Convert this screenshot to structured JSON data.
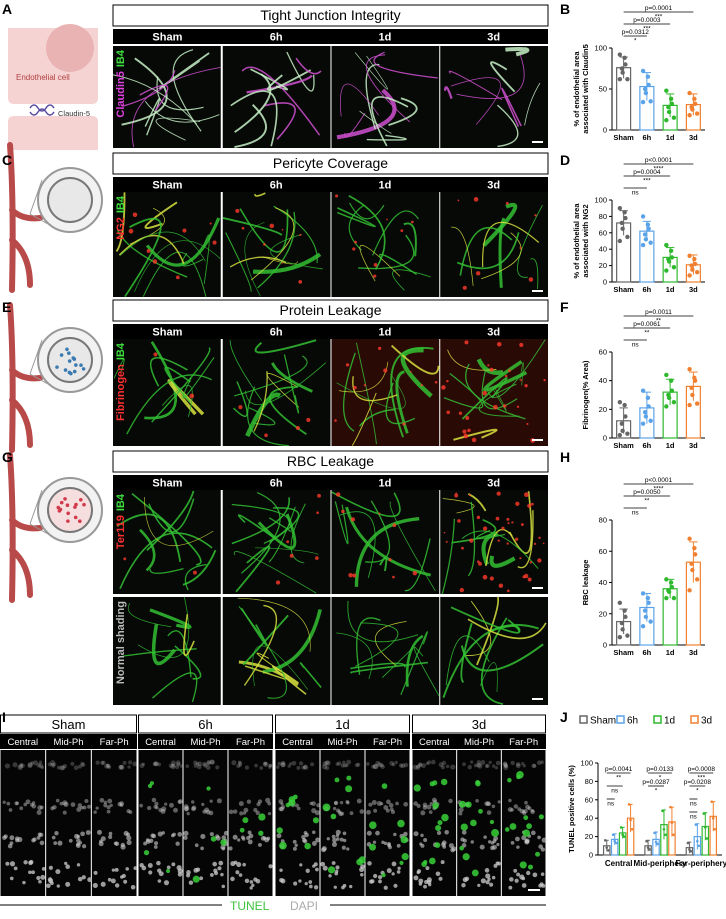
{
  "figure": {
    "panel_letters": [
      "A",
      "B",
      "C",
      "D",
      "E",
      "F",
      "G",
      "H",
      "I",
      "J"
    ],
    "timepoints": [
      "Sham",
      "6h",
      "1d",
      "3d"
    ],
    "rows": [
      {
        "title": "Tight Junction Integrity",
        "channels": [
          {
            "name": "IB4",
            "color": "#3ee03e"
          },
          {
            "name": "Claudin5",
            "color": "#e040e0"
          }
        ]
      },
      {
        "title": "Pericyte Coverage",
        "channels": [
          {
            "name": "IB4",
            "color": "#3ee03e"
          },
          {
            "name": "NG2",
            "color": "#ff3030"
          }
        ]
      },
      {
        "title": "Protein Leakage",
        "channels": [
          {
            "name": "IB4",
            "color": "#3ee03e"
          },
          {
            "name": "Fibrinogen",
            "color": "#ff3030"
          }
        ]
      },
      {
        "title": "RBC Leakage",
        "channels": [
          {
            "name": "IB4",
            "color": "#3ee03e"
          },
          {
            "name": "Ter119",
            "color": "#ff3030"
          }
        ],
        "second_channels": [
          {
            "name": "Normal shading",
            "color": "#bbbbbb"
          }
        ]
      }
    ],
    "schematic": {
      "cell": "Endothelial cell",
      "protein": "Claudin-5"
    },
    "retina": {
      "regions": [
        "Central",
        "Mid-Ph",
        "Far-Ph"
      ],
      "stains": [
        {
          "name": "TUNEL",
          "color": "#3ec43e"
        },
        {
          "name": "DAPI",
          "color": "#aaaaaa"
        }
      ]
    }
  },
  "chart_data": [
    {
      "type": "bar",
      "ylabel": [
        "% of endothelial area",
        "associated with Claudin5"
      ],
      "categories": [
        "Sham",
        "6h",
        "1d",
        "3d"
      ],
      "colors": [
        "#666666",
        "#5aa3e8",
        "#2db82d",
        "#f08030"
      ],
      "values": [
        76,
        53,
        30,
        31
      ],
      "errors": [
        13,
        17,
        14,
        13
      ],
      "points": [
        [
          92,
          88,
          80,
          75,
          70,
          62,
          62
        ],
        [
          72,
          65,
          55,
          50,
          45,
          35,
          34
        ],
        [
          48,
          38,
          32,
          28,
          22,
          15,
          12
        ],
        [
          45,
          38,
          32,
          28,
          25,
          20,
          18
        ]
      ],
      "ylim": [
        0,
        100
      ],
      "yticks": [
        0,
        50,
        100
      ],
      "annotations": [
        {
          "p": "p=0.0001",
          "stars": "***"
        },
        {
          "p": "p=0.0003",
          "stars": "***"
        },
        {
          "p": "p=0.0312",
          "stars": "*"
        }
      ]
    },
    {
      "type": "bar",
      "ylabel": [
        "% of endothelial area",
        "associated with NG2"
      ],
      "categories": [
        "Sham",
        "6h",
        "1d",
        "3d"
      ],
      "colors": [
        "#666666",
        "#5aa3e8",
        "#2db82d",
        "#f08030"
      ],
      "values": [
        72,
        62,
        30,
        21
      ],
      "errors": [
        15,
        12,
        12,
        12
      ],
      "points": [
        [
          90,
          85,
          78,
          72,
          65,
          55,
          50
        ],
        [
          80,
          70,
          65,
          58,
          52,
          48,
          45
        ],
        [
          45,
          38,
          30,
          28,
          25,
          18,
          14
        ],
        [
          32,
          28,
          22,
          20,
          15,
          12,
          8
        ]
      ],
      "ylim": [
        0,
        100
      ],
      "yticks": [
        0,
        20,
        40,
        60,
        80,
        100
      ],
      "annotations": [
        {
          "p": "p<0.0001",
          "stars": "****"
        },
        {
          "p": "p=0.0004",
          "stars": "***"
        },
        {
          "stars": "ns"
        }
      ]
    },
    {
      "type": "bar",
      "ylabel": [
        "Fibrinogen(% Area)"
      ],
      "categories": [
        "Sham",
        "6h",
        "1d",
        "3d"
      ],
      "colors": [
        "#666666",
        "#5aa3e8",
        "#2db82d",
        "#f08030"
      ],
      "values": [
        12,
        21,
        32,
        36
      ],
      "errors": [
        9,
        11,
        9,
        10
      ],
      "points": [
        [
          25,
          23,
          15,
          10,
          5,
          3,
          2
        ],
        [
          33,
          28,
          22,
          18,
          15,
          12,
          10
        ],
        [
          44,
          40,
          33,
          30,
          28,
          25,
          22
        ],
        [
          48,
          42,
          40,
          35,
          30,
          24,
          23
        ]
      ],
      "ylim": [
        0,
        60
      ],
      "yticks": [
        0,
        20,
        40,
        60
      ],
      "annotations": [
        {
          "p": "p=0.0011",
          "stars": "**"
        },
        {
          "p": "p=0.0061",
          "stars": "**"
        },
        {
          "stars": "ns"
        }
      ]
    },
    {
      "type": "bar",
      "ylabel": [
        "RBC leakage"
      ],
      "categories": [
        "Sham",
        "6h",
        "1d",
        "3d"
      ],
      "colors": [
        "#666666",
        "#5aa3e8",
        "#2db82d",
        "#f08030"
      ],
      "values": [
        15,
        24,
        36,
        53
      ],
      "errors": [
        8,
        9,
        6,
        13
      ],
      "points": [
        [
          27,
          22,
          18,
          14,
          10,
          6,
          5
        ],
        [
          33,
          30,
          27,
          22,
          18,
          15,
          12
        ],
        [
          42,
          40,
          37,
          35,
          34,
          30,
          30
        ],
        [
          68,
          62,
          58,
          52,
          48,
          42,
          35
        ]
      ],
      "ylim": [
        0,
        80
      ],
      "yticks": [
        0,
        20,
        40,
        60,
        80
      ],
      "annotations": [
        {
          "p": "p<0.0001",
          "stars": "****"
        },
        {
          "p": "p=0.0050",
          "stars": "**"
        },
        {
          "stars": "ns"
        }
      ]
    },
    {
      "type": "grouped_bar",
      "ylabel": [
        "TUNEL positive cells (%)"
      ],
      "categories": [
        "Central",
        "Mid-periphery",
        "Far-periphery"
      ],
      "series": [
        {
          "name": "Sham",
          "color": "#666666",
          "values": [
            10,
            10,
            8
          ],
          "errors": [
            6,
            6,
            6
          ],
          "points": [
            [
              16,
              8,
              5
            ],
            [
              15,
              8,
              6
            ],
            [
              13,
              6,
              4
            ]
          ]
        },
        {
          "name": "6h",
          "color": "#5aa3e8",
          "values": [
            17,
            17,
            20
          ],
          "errors": [
            6,
            8,
            14
          ],
          "points": [
            [
              22,
              15,
              13
            ],
            [
              24,
              14,
              12
            ],
            [
              33,
              15,
              10
            ]
          ]
        },
        {
          "name": "1d",
          "color": "#2db82d",
          "values": [
            24,
            33,
            31
          ],
          "errors": [
            6,
            16,
            15
          ],
          "points": [
            [
              30,
              22,
              20
            ],
            [
              48,
              28,
              22
            ],
            [
              45,
              30,
              18
            ]
          ]
        },
        {
          "name": "3d",
          "color": "#f08030",
          "values": [
            40,
            36,
            42
          ],
          "errors": [
            15,
            16,
            16
          ],
          "points": [
            [
              55,
              38,
              28
            ],
            [
              52,
              35,
              22
            ],
            [
              58,
              40,
              28
            ]
          ]
        }
      ],
      "ylim": [
        0,
        100
      ],
      "yticks": [
        0,
        20,
        40,
        60,
        80,
        100
      ],
      "annotations": [
        [
          {
            "p": "p=0.0041",
            "stars": "**"
          },
          {
            "stars": "ns"
          },
          {
            "stars": "ns"
          }
        ],
        [
          {
            "p": "p=0.0133",
            "stars": "*"
          },
          {
            "p": "p=0.0287",
            "stars": "*"
          }
        ],
        [
          {
            "p": "p=0.0008",
            "stars": "***"
          },
          {
            "p": "p=0.0208",
            "stars": "*"
          },
          {
            "stars": "ns"
          },
          {
            "stars": "ns"
          }
        ]
      ]
    }
  ]
}
